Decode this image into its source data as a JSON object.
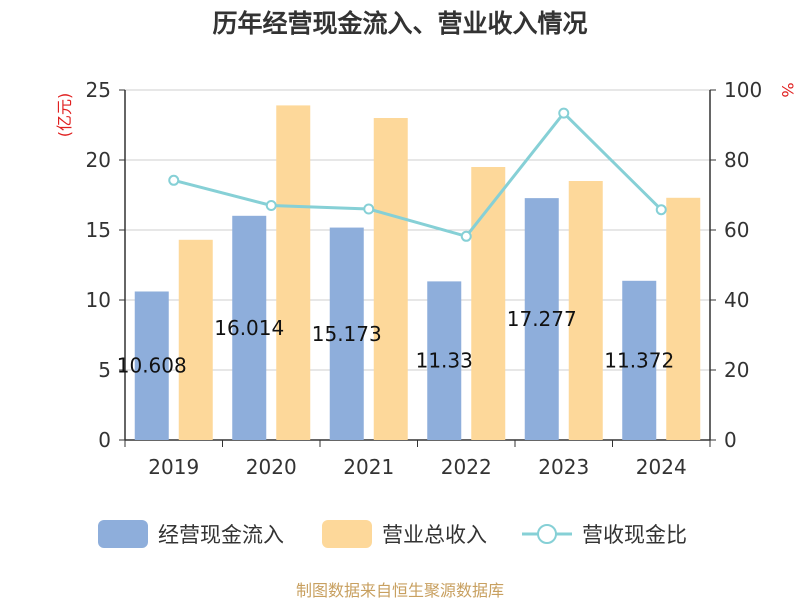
{
  "chart_data": {
    "type": "bar",
    "title": "历年经营现金流入、营业收入情况",
    "categories": [
      "2019",
      "2020",
      "2021",
      "2022",
      "2023",
      "2024"
    ],
    "series": [
      {
        "name": "经营现金流入",
        "type": "bar",
        "axis": "left",
        "color": "#8eaedb",
        "values": [
          10.608,
          16.014,
          15.173,
          11.33,
          17.277,
          11.372
        ],
        "labels": [
          "10.608",
          "16.014",
          "15.173",
          "11.33",
          "17.277",
          "11.372"
        ]
      },
      {
        "name": "营业总收入",
        "type": "bar",
        "axis": "left",
        "color": "#fdd89a",
        "values": [
          14.3,
          23.9,
          23.0,
          19.5,
          18.5,
          17.3
        ]
      },
      {
        "name": "营收现金比",
        "type": "line",
        "axis": "right",
        "color": "#86d0d6",
        "values": [
          74.2,
          67.0,
          66.0,
          58.2,
          93.4,
          65.8
        ]
      }
    ],
    "ylim": [
      0,
      25
    ],
    "y2lim": [
      0,
      100
    ],
    "yticks": [
      "0",
      "5",
      "10",
      "15",
      "20",
      "25"
    ],
    "y2ticks": [
      "0",
      "20",
      "40",
      "60",
      "80",
      "100"
    ],
    "ylabel": "(亿元)",
    "y2label": "%",
    "grid": true,
    "legend_position": "bottom"
  },
  "footer": {
    "source": "制图数据来自恒生聚源数据库"
  }
}
